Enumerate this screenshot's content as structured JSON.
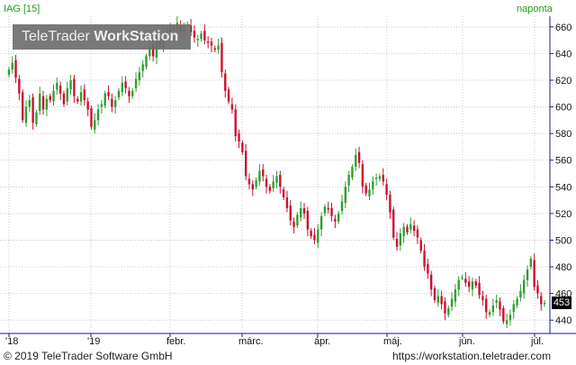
{
  "header": {
    "instrument": "IAG [15]",
    "interval": "naponta"
  },
  "watermark": {
    "brand": "TeleTrader",
    "product": "WorkStation"
  },
  "footer": {
    "copyright": "© 2019 TeleTrader Software GmbH",
    "url": "https://workstation.teletrader.com"
  },
  "colors": {
    "up": "#2e9e2e",
    "down": "#c8102e",
    "grid": "#c8c8c8",
    "axis": "#1a1a8c",
    "title": "#1aa01a"
  },
  "chart_data": {
    "type": "candlestick",
    "title": "IAG [15]",
    "interval": "naponta",
    "last_value": "453",
    "ylim": [
      430,
      668
    ],
    "y_ticks": [
      440,
      460,
      480,
      500,
      520,
      540,
      560,
      580,
      600,
      620,
      640,
      660
    ],
    "x_ticks": [
      {
        "label": "'18",
        "index": 0
      },
      {
        "label": "'19",
        "index": 24
      },
      {
        "label": "febr.",
        "index": 47
      },
      {
        "label": "márc.",
        "index": 68
      },
      {
        "label": "ápr.",
        "index": 90
      },
      {
        "label": "máj.",
        "index": 110
      },
      {
        "label": "jún.",
        "index": 132
      },
      {
        "label": "júl.",
        "index": 153
      }
    ],
    "closes": [
      628,
      633,
      622,
      610,
      590,
      600,
      605,
      588,
      596,
      610,
      598,
      606,
      605,
      612,
      618,
      610,
      602,
      614,
      620,
      608,
      604,
      611,
      605,
      598,
      585,
      590,
      598,
      602,
      610,
      608,
      600,
      605,
      612,
      618,
      614,
      608,
      612,
      621,
      626,
      632,
      638,
      645,
      638,
      650,
      646,
      656,
      654,
      660,
      658,
      663,
      656,
      660,
      662,
      656,
      652,
      651,
      655,
      650,
      648,
      646,
      643,
      646,
      626,
      612,
      604,
      598,
      578,
      574,
      566,
      548,
      542,
      538,
      545,
      552,
      548,
      540,
      537,
      544,
      548,
      540,
      532,
      524,
      515,
      510,
      519,
      524,
      520,
      508,
      503,
      500,
      508,
      518,
      525,
      523,
      518,
      514,
      520,
      529,
      540,
      549,
      555,
      564,
      558,
      540,
      535,
      538,
      544,
      547,
      548,
      544,
      534,
      521,
      502,
      495,
      505,
      510,
      506,
      512,
      507,
      502,
      492,
      480,
      475,
      463,
      455,
      458,
      452,
      445,
      449,
      456,
      463,
      470,
      472,
      468,
      465,
      469,
      466,
      459,
      455,
      446,
      446,
      451,
      455,
      448,
      439,
      440,
      444,
      452,
      456,
      462,
      470,
      478,
      486,
      465,
      460,
      452,
      453
    ]
  }
}
